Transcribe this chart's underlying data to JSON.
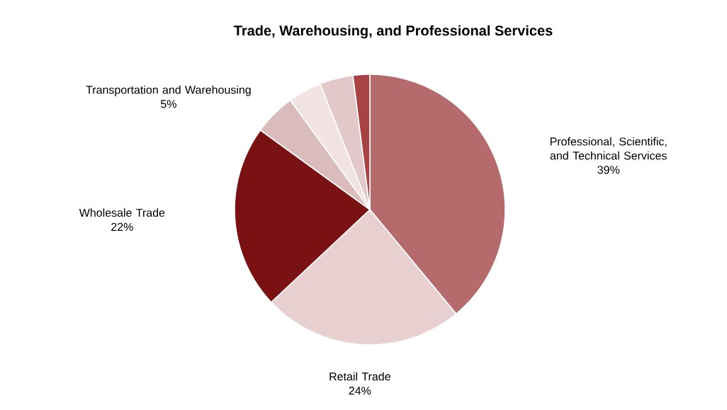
{
  "chart_data": {
    "type": "pie",
    "title": "Trade, Warehousing, and Professional Services",
    "categories": [
      "Professional, Scientific, and Technical Services",
      "Retail Trade",
      "Wholesale Trade",
      "Transportation and Warehousing",
      null,
      null,
      null
    ],
    "values": [
      39,
      24,
      22,
      5,
      4,
      4,
      2
    ],
    "value_labels": [
      "39%",
      "24%",
      "22%",
      "5%",
      null,
      null,
      null
    ],
    "colors": [
      "#b56a6c",
      "#e8cfd0",
      "#7a1214",
      "#dbbcbd",
      "#f2e3e3",
      "#e3c8c9",
      "#a84244"
    ]
  }
}
